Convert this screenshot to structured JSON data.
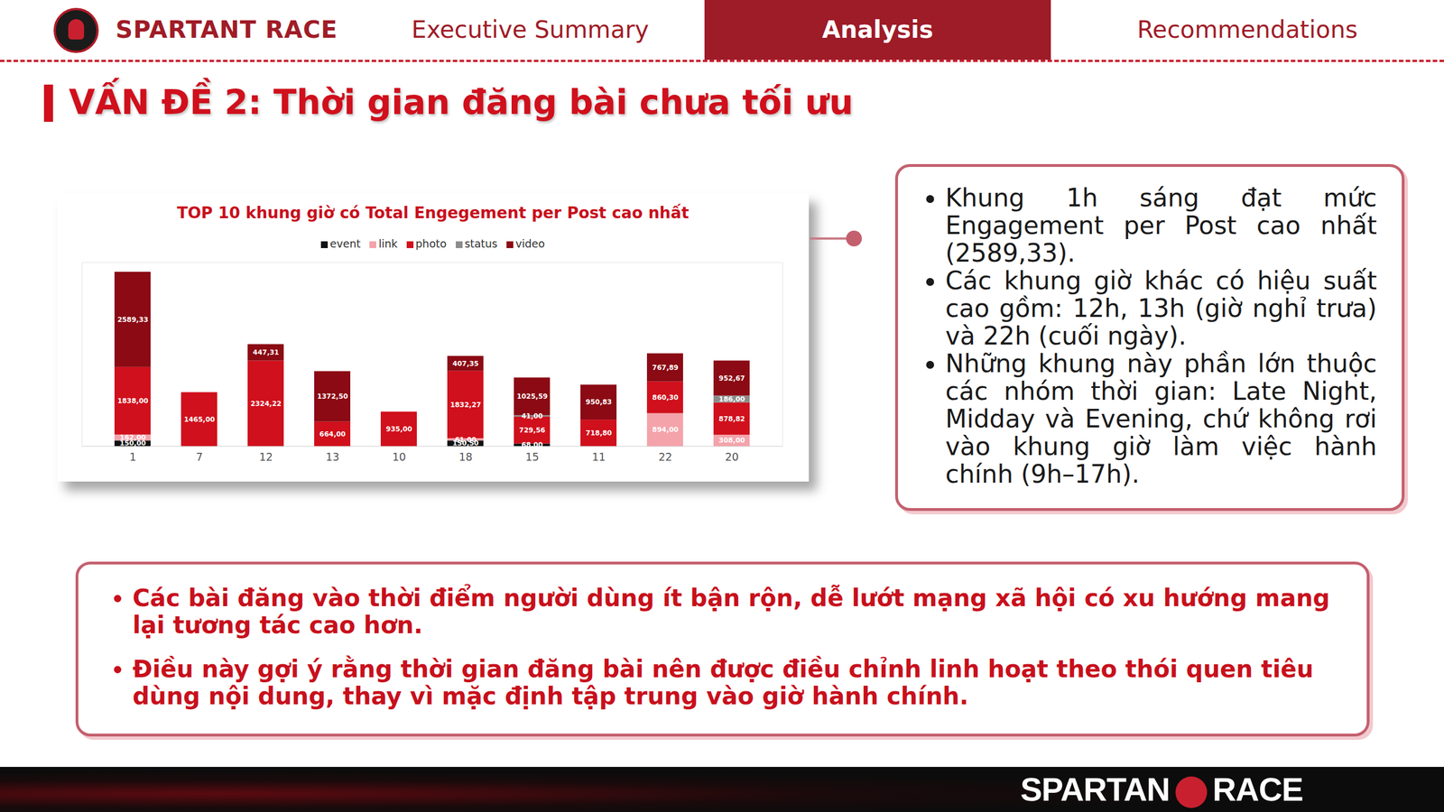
{
  "header": {
    "brand": "SPARTANT RACE",
    "nav": [
      "Executive Summary",
      "Analysis",
      "Recommendations"
    ],
    "active": "Analysis"
  },
  "title": "VẤN ĐỀ 2: Thời gian đăng bài chưa tối ưu",
  "chart_data": {
    "type": "bar",
    "title": "TOP 10 khung giờ có Total Engegement per Post cao nhất",
    "categories": [
      "1",
      "7",
      "12",
      "13",
      "10",
      "18",
      "15",
      "11",
      "22",
      "20"
    ],
    "stacked": true,
    "data_labels": true,
    "tick_labels": "x",
    "legend": "top",
    "grid": false,
    "ylim": [
      0,
      5000
    ],
    "yticks": [],
    "series": [
      {
        "name": "event",
        "color": "#111111",
        "values": [
          150,
          null,
          null,
          null,
          null,
          150.5,
          68,
          null,
          null,
          null
        ],
        "value_labels": [
          "150,00",
          null,
          null,
          null,
          null,
          "150,50",
          "68,00",
          null,
          null,
          null
        ]
      },
      {
        "name": "link",
        "color": "#f4a3ab",
        "values": [
          162,
          null,
          null,
          null,
          null,
          61,
          null,
          null,
          894,
          308
        ],
        "value_labels": [
          "162,00",
          null,
          null,
          null,
          null,
          "61,00",
          null,
          null,
          "894,00",
          "308,00"
        ]
      },
      {
        "name": "photo",
        "color": "#d0101c",
        "values": [
          1838,
          1465,
          2324.22,
          664,
          935,
          1832.27,
          729.56,
          718.8,
          860.3,
          878.82
        ],
        "value_labels": [
          "1838,00",
          "1465,00",
          "2324,22",
          "664,00",
          "935,00",
          "1832,27",
          "729,56",
          "718,80",
          "860,30",
          "878,82"
        ]
      },
      {
        "name": "status",
        "color": "#8c8c8c",
        "values": [
          null,
          null,
          null,
          null,
          null,
          null,
          41,
          null,
          null,
          186
        ],
        "value_labels": [
          null,
          null,
          null,
          null,
          null,
          null,
          "41,00",
          null,
          null,
          "186,00"
        ]
      },
      {
        "name": "video",
        "color": "#8b0a14",
        "values": [
          2589.33,
          null,
          447.31,
          1372.5,
          null,
          407.35,
          1025.59,
          950.83,
          767.89,
          952.67
        ],
        "value_labels": [
          "2589,33",
          null,
          "447,31",
          "1372,50",
          null,
          "407,35",
          "1025,59",
          "950,83",
          "767,89",
          "952,67"
        ]
      }
    ]
  },
  "insights": [
    "Khung 1h sáng đạt mức Engagement per Post cao nhất (2589,33).",
    "Các khung giờ khác có hiệu suất cao gồm: 12h, 13h (giờ nghỉ trưa) và 22h (cuối ngày).",
    "Những khung này phần lớn thuộc các nhóm thời gian: Late Night, Midday và Evening, chứ không rơi vào khung giờ làm việc hành chính (9h–17h)."
  ],
  "conclusions": [
    "Các bài đăng vào thời điểm người dùng ít bận rộn, dễ lướt mạng xã hội có xu hướng mang lại tương tác cao hơn.",
    "Điều này gợi ý rằng thời gian đăng bài nên được điều chỉnh linh hoạt theo thói quen tiêu dùng nội dung, thay vì mặc định tập trung vào giờ hành chính."
  ],
  "footer": {
    "brand": "SPARTAN RACE"
  }
}
